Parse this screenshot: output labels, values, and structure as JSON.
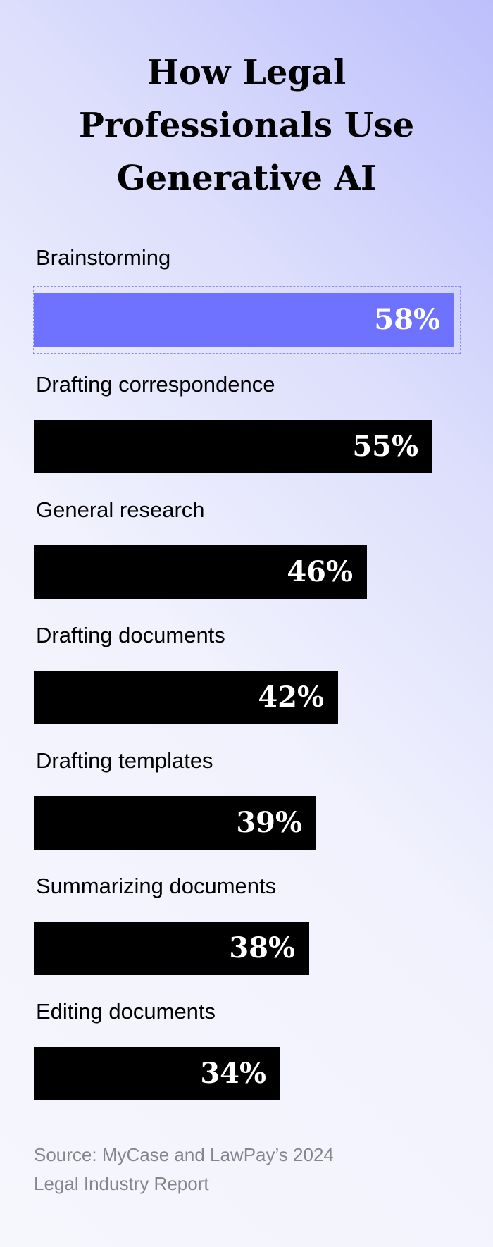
{
  "title": {
    "lines": [
      "How Legal",
      "Professionals Use",
      "Generative AI"
    ]
  },
  "chart_data": {
    "type": "bar",
    "orientation": "horizontal",
    "title": "How Legal Professionals Use Generative AI",
    "categories": [
      "Brainstorming",
      "Drafting correspondence",
      "General research",
      "Drafting documents",
      "Drafting templates",
      "Summarizing documents",
      "Editing documents"
    ],
    "values": [
      58,
      55,
      46,
      42,
      39,
      38,
      34
    ],
    "value_labels": [
      "58%",
      "55%",
      "46%",
      "42%",
      "39%",
      "38%",
      "34%"
    ],
    "unit": "%",
    "highlighted_category": "Brainstorming",
    "bar_color": "#000000",
    "highlight_color": "#6f72ff",
    "value_label_color": "#ffffff",
    "xlabel": "",
    "ylabel": "",
    "xlim": [
      0,
      58
    ],
    "grid": false,
    "legend": "none"
  },
  "source": {
    "lines": [
      "Source: MyCase and LawPay’s 2024",
      "Legal Industry Report"
    ]
  }
}
